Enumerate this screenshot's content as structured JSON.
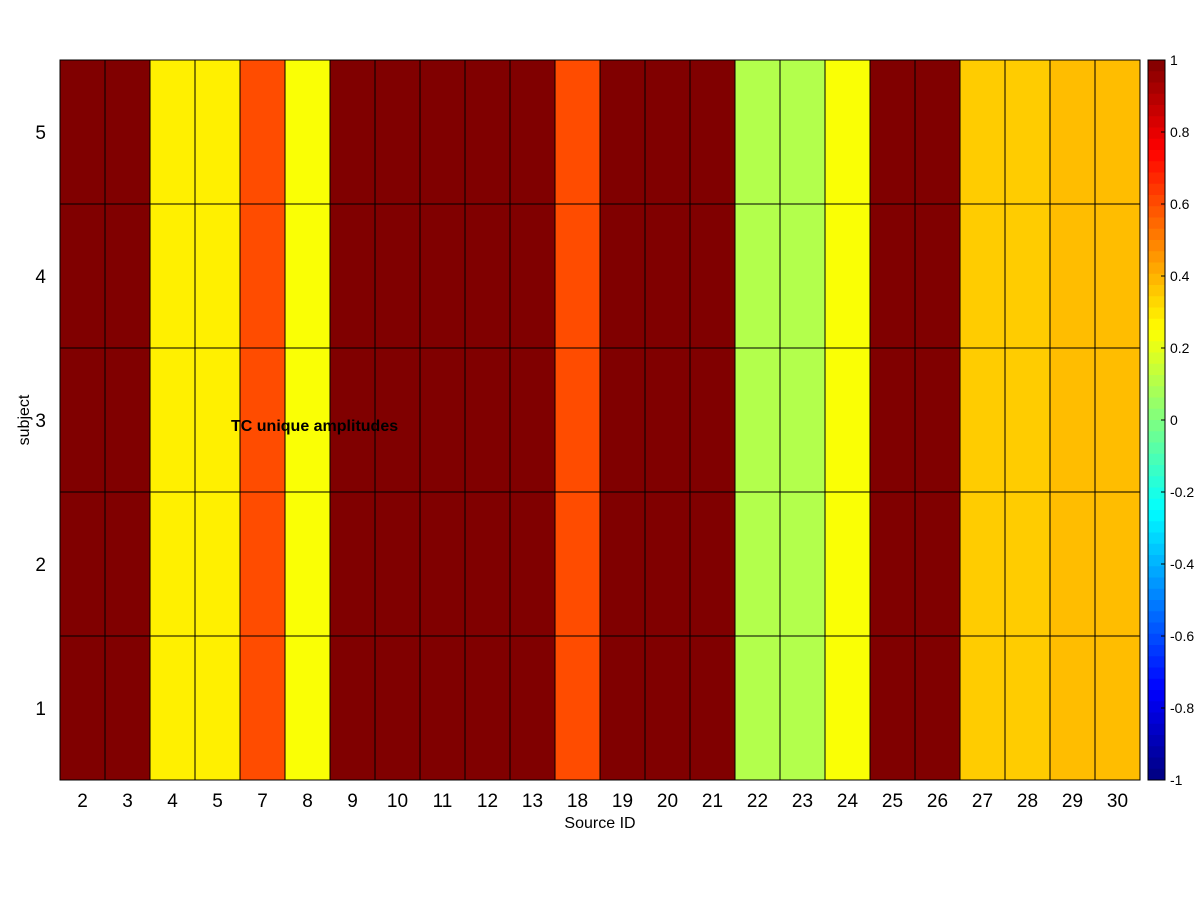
{
  "chart_data": {
    "type": "heatmap",
    "title": "TC unique amplitudes",
    "xlabel": "Source ID",
    "ylabel": "subject",
    "x_categories": [
      "2",
      "3",
      "4",
      "5",
      "7",
      "8",
      "9",
      "10",
      "11",
      "12",
      "13",
      "18",
      "19",
      "20",
      "21",
      "22",
      "23",
      "24",
      "25",
      "26",
      "27",
      "28",
      "29",
      "30"
    ],
    "y_categories": [
      "1",
      "2",
      "3",
      "4",
      "5"
    ],
    "values": [
      [
        1.0,
        1.0,
        0.28,
        0.28,
        0.6,
        0.24,
        1.0,
        1.0,
        1.0,
        1.0,
        1.0,
        0.6,
        1.0,
        1.0,
        1.0,
        0.1,
        0.1,
        0.24,
        1.0,
        1.0,
        0.35,
        0.35,
        0.38,
        0.38
      ],
      [
        1.0,
        1.0,
        0.28,
        0.28,
        0.6,
        0.24,
        1.0,
        1.0,
        1.0,
        1.0,
        1.0,
        0.6,
        1.0,
        1.0,
        1.0,
        0.1,
        0.1,
        0.24,
        1.0,
        1.0,
        0.35,
        0.35,
        0.38,
        0.38
      ],
      [
        1.0,
        1.0,
        0.28,
        0.28,
        0.6,
        0.24,
        1.0,
        1.0,
        1.0,
        1.0,
        1.0,
        0.6,
        1.0,
        1.0,
        1.0,
        0.1,
        0.1,
        0.24,
        1.0,
        1.0,
        0.35,
        0.35,
        0.38,
        0.38
      ],
      [
        1.0,
        1.0,
        0.28,
        0.28,
        0.6,
        0.24,
        1.0,
        1.0,
        1.0,
        1.0,
        1.0,
        0.6,
        1.0,
        1.0,
        1.0,
        0.1,
        0.1,
        0.24,
        1.0,
        1.0,
        0.35,
        0.35,
        0.38,
        0.38
      ],
      [
        1.0,
        1.0,
        0.28,
        0.28,
        0.6,
        0.24,
        1.0,
        1.0,
        1.0,
        1.0,
        1.0,
        0.6,
        1.0,
        1.0,
        1.0,
        0.1,
        0.1,
        0.24,
        1.0,
        1.0,
        0.35,
        0.35,
        0.38,
        0.38
      ]
    ],
    "color_range": [
      -1,
      1
    ],
    "colormap": "jet",
    "colorbar_ticks": [
      "1",
      "0.8",
      "0.6",
      "0.4",
      "0.2",
      "0",
      "-0.2",
      "-0.4",
      "-0.6",
      "-0.8",
      "-1"
    ],
    "grid": true
  }
}
